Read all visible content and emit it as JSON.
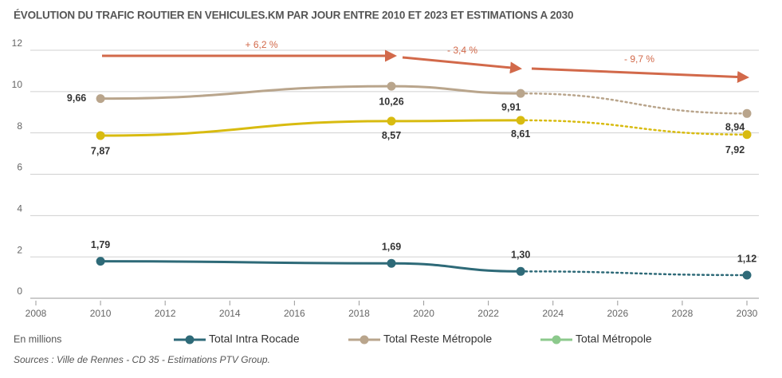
{
  "chart_data": {
    "type": "line",
    "title": "ÉVOLUTION DU TRAFIC ROUTIER EN VEHICULES.KM PAR JOUR ENTRE 2010 ET 2023 ET ESTIMATIONS A 2030",
    "y_label": "En millions",
    "source": "Sources : Ville de Rennes - CD 35 - Estimations PTV Group.",
    "x": [
      2010,
      2019,
      2023,
      2030
    ],
    "segment_styles": [
      "solid",
      "solid",
      "dotted"
    ],
    "series": [
      {
        "name": "Total Intra Rocade",
        "color": "#2e6a78",
        "values": [
          1.79,
          1.69,
          1.3,
          1.12
        ],
        "value_labels": [
          "1,79",
          "1,69",
          "1,30",
          "1,12"
        ]
      },
      {
        "name": "Total Reste Métropole",
        "color": "#b9a58c",
        "values": [
          9.66,
          10.26,
          9.91,
          8.94
        ],
        "value_labels": [
          "9,66",
          "10,26",
          "9,91",
          "8,94"
        ]
      },
      {
        "name": "Total Métropole",
        "color": "#d8bb10",
        "legend_color": "#8cc98c",
        "values": [
          7.87,
          8.57,
          8.61,
          7.92
        ],
        "value_labels": [
          "7,87",
          "8,57",
          "8,61",
          "7,92"
        ]
      }
    ],
    "annotations": [
      "+ 6,2 %",
      "- 3,4 %",
      "- 9,7 %"
    ],
    "xlim": [
      2008,
      2030
    ],
    "xticks": [
      2008,
      2010,
      2012,
      2014,
      2016,
      2018,
      2020,
      2022,
      2024,
      2026,
      2028,
      2030
    ],
    "ylim": [
      0,
      12
    ],
    "yticks": [
      0,
      2,
      4,
      6,
      8,
      10,
      12
    ],
    "grid": true
  }
}
